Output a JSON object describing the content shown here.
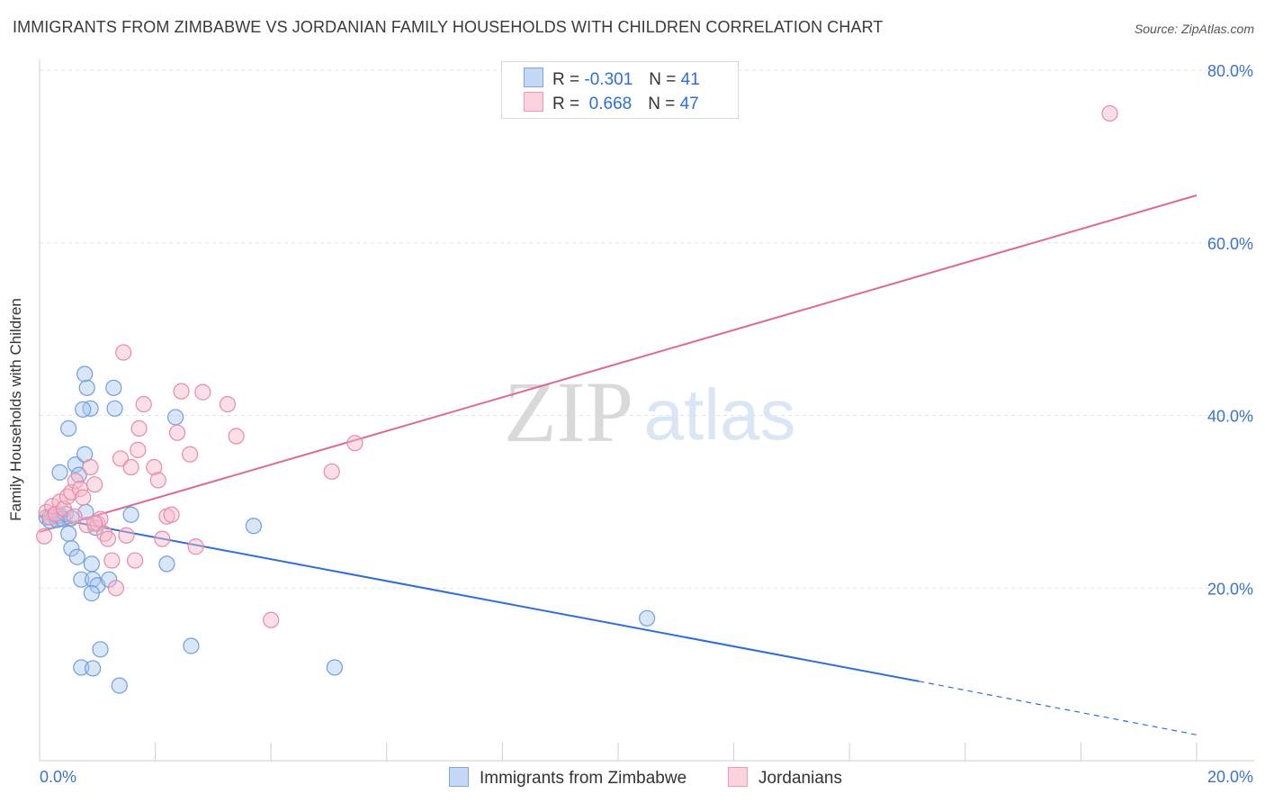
{
  "title": "IMMIGRANTS FROM ZIMBABWE VS JORDANIAN FAMILY HOUSEHOLDS WITH CHILDREN CORRELATION CHART",
  "source": "Source: ZipAtlas.com",
  "watermark": {
    "zip": "ZIP",
    "atlas": "atlas"
  },
  "legend": {
    "rows": [
      {
        "r_label": "R =",
        "r_value": "-0.301",
        "n_label": "N =",
        "n_value": "41",
        "color": "#a9c7f0"
      },
      {
        "r_label": "R =",
        "r_value": "0.668",
        "n_label": "N =",
        "n_value": "47",
        "color": "#f6b8c9"
      }
    ]
  },
  "colors": {
    "blue_fill": "#a9c7f0",
    "blue_stroke": "#6f9fe0",
    "blue_line": "#2d6fd6",
    "pink_fill": "#f6b8c9",
    "pink_stroke": "#e98aa6",
    "pink_line": "#e0698f",
    "axis_label": "#3b73c8",
    "grid": "#e3e3e3"
  },
  "chart_data": {
    "type": "scatter",
    "title": "IMMIGRANTS FROM ZIMBABWE VS JORDANIAN FAMILY HOUSEHOLDS WITH CHILDREN CORRELATION CHART",
    "xlabel": "",
    "ylabel": "Family Households with Children",
    "xlim": [
      0,
      20
    ],
    "ylim": [
      0,
      80
    ],
    "x_ticks": [
      "0.0%",
      "20.0%"
    ],
    "y_ticks": [
      "20.0%",
      "40.0%",
      "60.0%",
      "80.0%"
    ],
    "y_tick_values": [
      20,
      40,
      60,
      80
    ],
    "grid": true,
    "legend_position": "top-center",
    "series": [
      {
        "name": "Immigrants from Zimbabwe",
        "color": "#a9c7f0",
        "points": [
          [
            0.12,
            28.2
          ],
          [
            0.18,
            27.8
          ],
          [
            0.25,
            28.5
          ],
          [
            0.3,
            27.9
          ],
          [
            0.35,
            28.4
          ],
          [
            0.4,
            28.0
          ],
          [
            0.45,
            28.6
          ],
          [
            0.5,
            26.3
          ],
          [
            0.55,
            28.1
          ],
          [
            0.35,
            33.4
          ],
          [
            0.62,
            34.3
          ],
          [
            0.68,
            33.1
          ],
          [
            0.78,
            35.5
          ],
          [
            0.8,
            28.8
          ],
          [
            0.78,
            44.8
          ],
          [
            0.88,
            40.8
          ],
          [
            1.3,
            40.8
          ],
          [
            0.82,
            43.2
          ],
          [
            1.28,
            43.2
          ],
          [
            0.55,
            24.6
          ],
          [
            0.65,
            23.6
          ],
          [
            0.72,
            21.0
          ],
          [
            0.9,
            22.8
          ],
          [
            0.92,
            21.0
          ],
          [
            0.97,
            27.0
          ],
          [
            1.0,
            20.3
          ],
          [
            1.58,
            28.5
          ],
          [
            0.72,
            10.8
          ],
          [
            0.92,
            10.7
          ],
          [
            1.05,
            12.9
          ],
          [
            1.38,
            8.7
          ],
          [
            0.9,
            19.4
          ],
          [
            1.2,
            21.0
          ],
          [
            2.2,
            22.8
          ],
          [
            2.35,
            39.8
          ],
          [
            3.7,
            27.2
          ],
          [
            2.62,
            13.3
          ],
          [
            0.5,
            38.5
          ],
          [
            0.75,
            40.7
          ],
          [
            5.1,
            10.8
          ],
          [
            10.5,
            16.5
          ]
        ]
      },
      {
        "name": "Jordanians",
        "color": "#f6b8c9",
        "points": [
          [
            0.08,
            26.0
          ],
          [
            0.12,
            28.8
          ],
          [
            0.18,
            28.2
          ],
          [
            0.22,
            29.5
          ],
          [
            0.28,
            28.6
          ],
          [
            0.35,
            30.0
          ],
          [
            0.42,
            29.2
          ],
          [
            0.48,
            30.6
          ],
          [
            0.55,
            31.1
          ],
          [
            0.62,
            32.4
          ],
          [
            0.7,
            31.5
          ],
          [
            0.75,
            30.5
          ],
          [
            0.82,
            27.3
          ],
          [
            0.88,
            34.0
          ],
          [
            0.95,
            32.0
          ],
          [
            1.0,
            27.5
          ],
          [
            1.05,
            28.0
          ],
          [
            1.12,
            26.3
          ],
          [
            1.18,
            25.7
          ],
          [
            1.25,
            23.2
          ],
          [
            1.32,
            20.0
          ],
          [
            1.4,
            35.0
          ],
          [
            1.5,
            26.1
          ],
          [
            1.58,
            34.0
          ],
          [
            1.65,
            23.2
          ],
          [
            1.72,
            38.5
          ],
          [
            1.8,
            41.3
          ],
          [
            1.98,
            34.0
          ],
          [
            2.05,
            32.5
          ],
          [
            2.12,
            25.7
          ],
          [
            2.2,
            28.3
          ],
          [
            2.28,
            28.5
          ],
          [
            2.38,
            38.0
          ],
          [
            2.45,
            42.8
          ],
          [
            2.6,
            35.5
          ],
          [
            2.7,
            24.8
          ],
          [
            2.82,
            42.7
          ],
          [
            3.25,
            41.3
          ],
          [
            3.4,
            37.6
          ],
          [
            4.0,
            16.3
          ],
          [
            5.05,
            33.5
          ],
          [
            5.45,
            36.8
          ],
          [
            1.45,
            47.3
          ],
          [
            1.7,
            36.0
          ],
          [
            0.95,
            27.5
          ],
          [
            0.6,
            28.3
          ],
          [
            18.5,
            75.0
          ]
        ]
      }
    ],
    "trend_lines": [
      {
        "series": "Immigrants from Zimbabwe",
        "from": [
          0,
          28.4
        ],
        "to": [
          15.2,
          9.2
        ],
        "dashed_to": [
          20,
          3.0
        ]
      },
      {
        "series": "Jordanians",
        "from": [
          0,
          26.5
        ],
        "to": [
          20,
          65.5
        ]
      }
    ]
  }
}
